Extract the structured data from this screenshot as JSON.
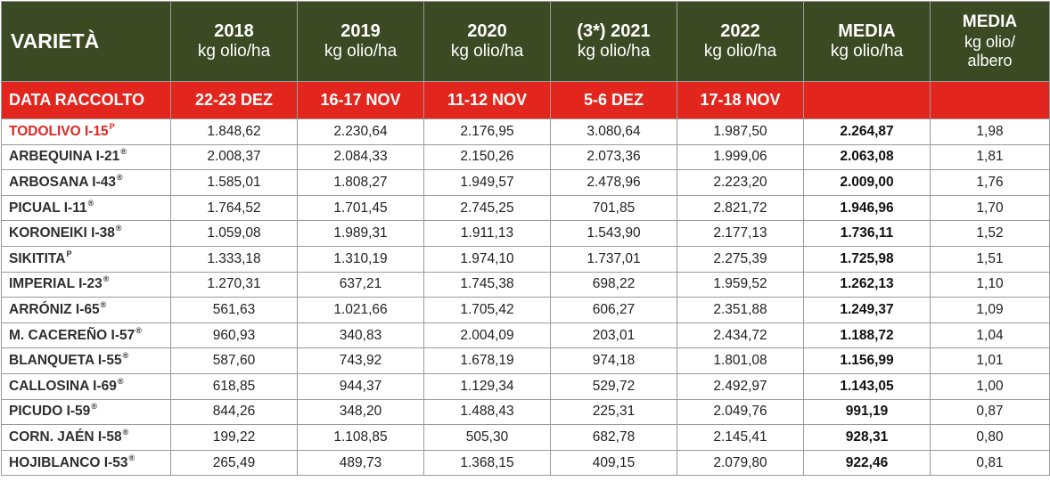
{
  "table": {
    "header": {
      "variety_label": "VARIETÀ",
      "years": [
        {
          "year": "2018",
          "unit": "kg olio/ha"
        },
        {
          "year": "2019",
          "unit": "kg olio/ha"
        },
        {
          "year": "2020",
          "unit": "kg olio/ha"
        },
        {
          "year": "(3*) 2021",
          "unit": "kg olio/ha"
        },
        {
          "year": "2022",
          "unit": "kg olio/ha"
        }
      ],
      "media_ha": {
        "title": "MEDIA",
        "unit": "kg olio/ha"
      },
      "media_tree": {
        "title": "MEDIA",
        "unit_line1": "kg olio/",
        "unit_line2": "albero"
      }
    },
    "harvest": {
      "label": "DATA RACCOLTO",
      "dates": [
        "22-23 DEZ",
        "16-17 NOV",
        "11-12 NOV",
        "5-6 DEZ",
        "17-18 NOV",
        "",
        ""
      ]
    },
    "rows": [
      {
        "name": "TODOLIVO I-15",
        "sup": "P",
        "values": [
          "1.848,62",
          "2.230,64",
          "2.176,95",
          "3.080,64",
          "1.987,50"
        ],
        "mean_ha": "2.264,87",
        "mean_tree": "1,98"
      },
      {
        "name": "ARBEQUINA I-21",
        "sup": "®",
        "values": [
          "2.008,37",
          "2.084,33",
          "2.150,26",
          "2.073,36",
          "1.999,06"
        ],
        "mean_ha": "2.063,08",
        "mean_tree": "1,81"
      },
      {
        "name": "ARBOSANA I-43",
        "sup": "®",
        "values": [
          "1.585,01",
          "1.808,27",
          "1.949,57",
          "2.478,96",
          "2.223,20"
        ],
        "mean_ha": "2.009,00",
        "mean_tree": "1,76"
      },
      {
        "name": "PICUAL I-11",
        "sup": "®",
        "values": [
          "1.764,52",
          "1.701,45",
          "2.745,25",
          "701,85",
          "2.821,72"
        ],
        "mean_ha": "1.946,96",
        "mean_tree": "1,70"
      },
      {
        "name": "KORONEIKI I-38",
        "sup": "®",
        "values": [
          "1.059,08",
          "1.989,31",
          "1.911,13",
          "1.543,90",
          "2.177,13"
        ],
        "mean_ha": "1.736,11",
        "mean_tree": "1,52"
      },
      {
        "name": "SIKITITA",
        "sup": "P",
        "values": [
          "1.333,18",
          "1.310,19",
          "1.974,10",
          "1.737,01",
          "2.275,39"
        ],
        "mean_ha": "1.725,98",
        "mean_tree": "1,51"
      },
      {
        "name": "IMPERIAL I-23",
        "sup": "®",
        "values": [
          "1.270,31",
          "637,21",
          "1.745,38",
          "698,22",
          "1.959,52"
        ],
        "mean_ha": "1.262,13",
        "mean_tree": "1,10"
      },
      {
        "name": "ARRÓNIZ I-65",
        "sup": "®",
        "values": [
          "561,63",
          "1.021,66",
          "1.705,42",
          "606,27",
          "2.351,88"
        ],
        "mean_ha": "1.249,37",
        "mean_tree": "1,09"
      },
      {
        "name": "M. CACEREÑO I-57",
        "sup": "®",
        "values": [
          "960,93",
          "340,83",
          "2.004,09",
          "203,01",
          "2.434,72"
        ],
        "mean_ha": "1.188,72",
        "mean_tree": "1,04"
      },
      {
        "name": "BLANQUETA I-55",
        "sup": "®",
        "values": [
          "587,60",
          "743,92",
          "1.678,19",
          "974,18",
          "1.801,08"
        ],
        "mean_ha": "1.156,99",
        "mean_tree": "1,01"
      },
      {
        "name": "CALLOSINA I-69",
        "sup": "®",
        "values": [
          "618,85",
          "944,37",
          "1.129,34",
          "529,72",
          "2.492,97"
        ],
        "mean_ha": "1.143,05",
        "mean_tree": "1,00"
      },
      {
        "name": "PICUDO I-59",
        "sup": "®",
        "values": [
          "844,26",
          "348,20",
          "1.488,43",
          "225,31",
          "2.049,76"
        ],
        "mean_ha": "991,19",
        "mean_tree": "0,87"
      },
      {
        "name": "CORN. JAÉN I-58",
        "sup": "®",
        "values": [
          "199,22",
          "1.108,85",
          "505,30",
          "682,78",
          "2.145,41"
        ],
        "mean_ha": "928,31",
        "mean_tree": "0,80"
      },
      {
        "name": "HOJIBLANCO I-53",
        "sup": "®",
        "values": [
          "265,49",
          "489,73",
          "1.368,15",
          "409,15",
          "2.079,80"
        ],
        "mean_ha": "922,46",
        "mean_tree": "0,81"
      }
    ],
    "colors": {
      "header_bg": "#3b4a23",
      "harvest_bg": "#e2261e",
      "highlight_text": "#e2261e",
      "border": "#9a9a9a"
    }
  }
}
